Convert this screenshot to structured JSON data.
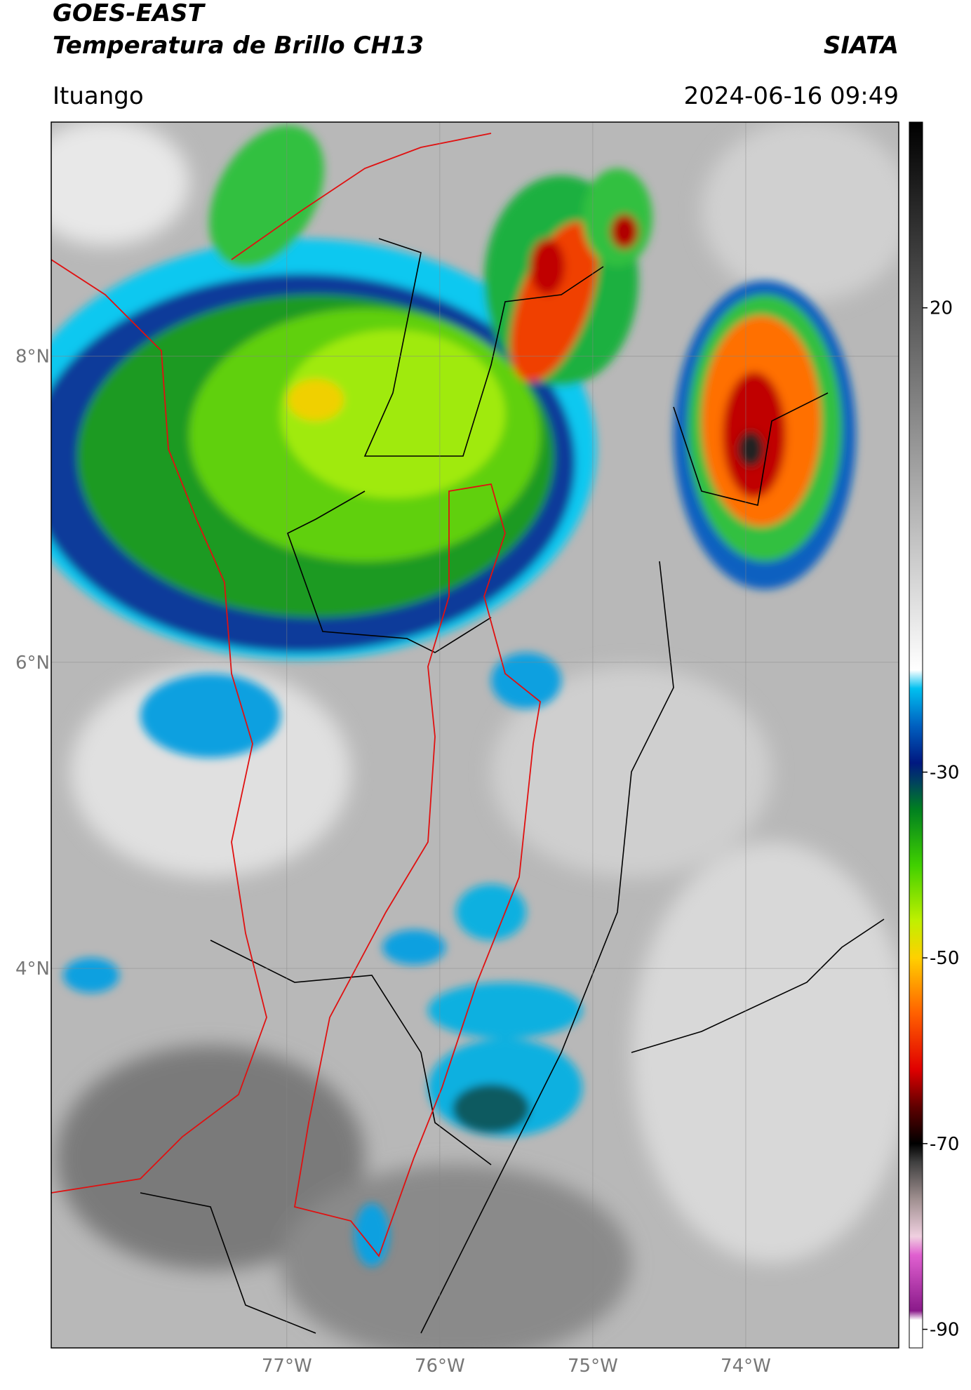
{
  "header": {
    "satellite": "GOES-EAST",
    "product": "Temperatura de Brillo CH13",
    "agency": "SIATA",
    "location": "Ituango",
    "timestamp": "2024-06-16 09:49"
  },
  "map": {
    "lon_range": [
      -78.54,
      -73.0
    ],
    "lat_range": [
      1.52,
      9.53
    ],
    "lon_ticks": [
      {
        "value": -77,
        "label": "77°W"
      },
      {
        "value": -76,
        "label": "76°W"
      },
      {
        "value": -75,
        "label": "75°W"
      },
      {
        "value": -74,
        "label": "74°W"
      }
    ],
    "lat_ticks": [
      {
        "value": 8,
        "label": "8°N"
      },
      {
        "value": 6,
        "label": "6°N"
      },
      {
        "value": 4,
        "label": "4°N"
      }
    ],
    "grid": true
  },
  "colorbar": {
    "range": [
      -92,
      40
    ],
    "ticks": [
      20,
      -30,
      -50,
      -70,
      -90
    ],
    "stops": [
      {
        "value": -92,
        "color": "#ffffff"
      },
      {
        "value": -89,
        "color": "#ffffff"
      },
      {
        "value": -88,
        "color": "#8a1a8a"
      },
      {
        "value": -82,
        "color": "#e060d0"
      },
      {
        "value": -80,
        "color": "#f0d0e0"
      },
      {
        "value": -76,
        "color": "#a09090"
      },
      {
        "value": -72,
        "color": "#404040"
      },
      {
        "value": -70,
        "color": "#000000"
      },
      {
        "value": -66,
        "color": "#600000"
      },
      {
        "value": -62,
        "color": "#e00000"
      },
      {
        "value": -56,
        "color": "#ff6000"
      },
      {
        "value": -50,
        "color": "#ffd000"
      },
      {
        "value": -46,
        "color": "#c0f000"
      },
      {
        "value": -40,
        "color": "#40d000"
      },
      {
        "value": -34,
        "color": "#008020"
      },
      {
        "value": -31,
        "color": "#004060"
      },
      {
        "value": -29,
        "color": "#001880"
      },
      {
        "value": -25,
        "color": "#0060c0"
      },
      {
        "value": -21,
        "color": "#00c0f0"
      },
      {
        "value": -19,
        "color": "#ffffff"
      },
      {
        "value": 40,
        "color": "#000000"
      }
    ]
  }
}
